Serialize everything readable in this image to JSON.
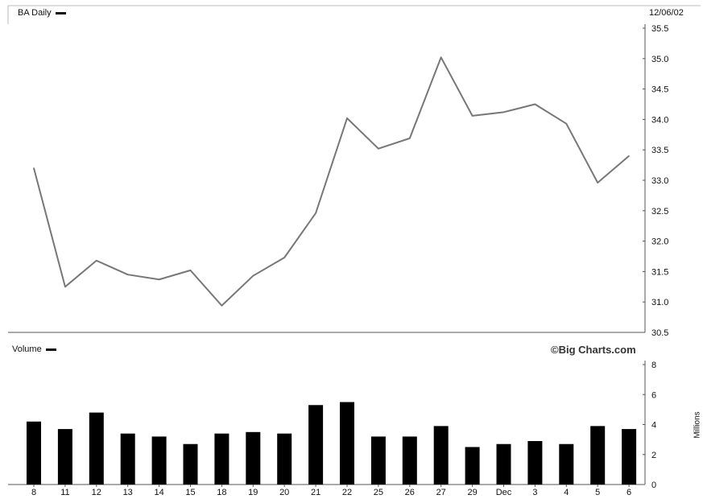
{
  "chart_data": [
    {
      "type": "line",
      "title": "BA Daily",
      "date_label": "12/06/02",
      "categories": [
        "8",
        "11",
        "12",
        "13",
        "14",
        "15",
        "18",
        "19",
        "20",
        "21",
        "22",
        "25",
        "26",
        "27",
        "29",
        "Dec",
        "3",
        "4",
        "5",
        "6"
      ],
      "values": [
        33.2,
        31.25,
        31.68,
        31.45,
        31.37,
        31.52,
        30.94,
        31.43,
        31.73,
        32.46,
        34.02,
        33.52,
        33.69,
        35.02,
        34.06,
        34.12,
        34.25,
        33.93,
        32.96,
        33.4
      ],
      "ylim": [
        30.5,
        35.5
      ],
      "yticks": [
        "30.5",
        "31.0",
        "31.5",
        "32.0",
        "32.5",
        "33.0",
        "33.5",
        "34.0",
        "34.5",
        "35.0",
        "35.5"
      ],
      "line_color": "#777777",
      "grid": false
    },
    {
      "type": "bar",
      "title": "Volume",
      "ylabel": "Millions",
      "categories": [
        "8",
        "11",
        "12",
        "13",
        "14",
        "15",
        "18",
        "19",
        "20",
        "21",
        "22",
        "25",
        "26",
        "27",
        "29",
        "Dec",
        "3",
        "4",
        "5",
        "6"
      ],
      "values": [
        4.2,
        3.7,
        4.8,
        3.4,
        3.2,
        2.7,
        3.4,
        3.5,
        3.4,
        5.3,
        5.5,
        3.2,
        3.2,
        3.9,
        2.5,
        2.7,
        2.9,
        2.7,
        3.9,
        3.7
      ],
      "ylim": [
        0,
        8
      ],
      "yticks": [
        "0",
        "2",
        "4",
        "6",
        "8"
      ],
      "bar_color": "#000000",
      "grid": false
    }
  ],
  "watermark": "©Big Charts.com"
}
